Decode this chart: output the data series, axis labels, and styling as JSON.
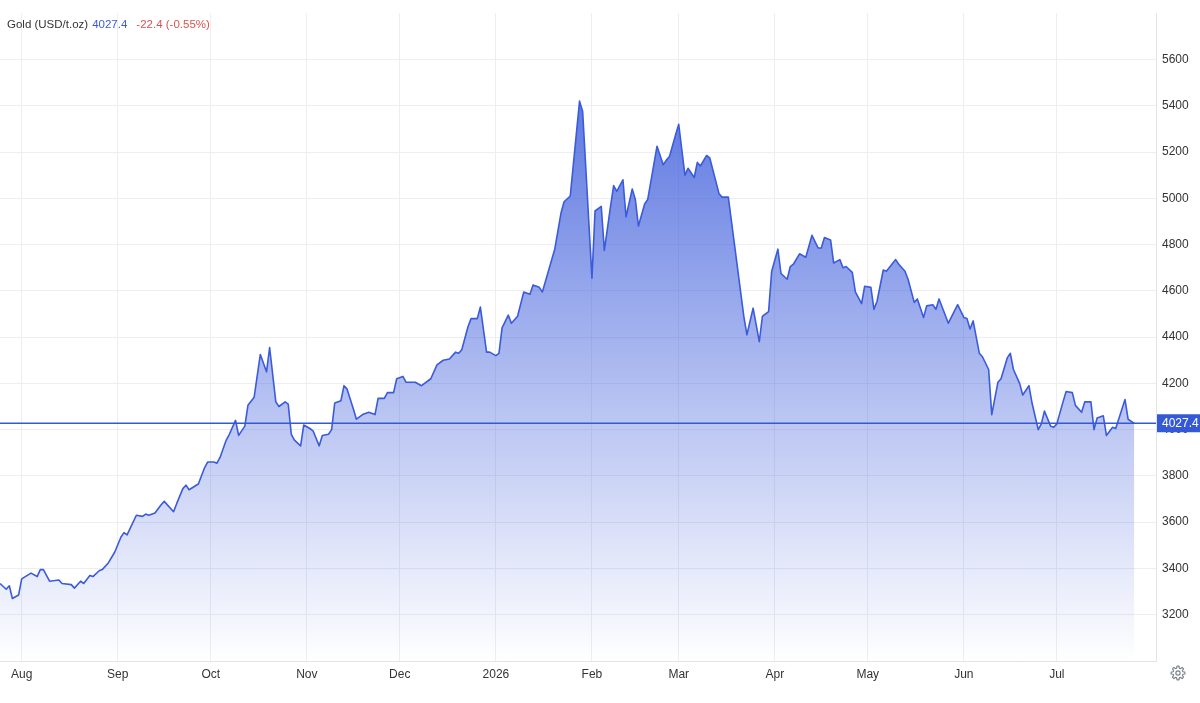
{
  "chart_data": {
    "type": "area",
    "title": "Gold (USD/t.oz)",
    "annotations": [
      "4027.4",
      "-22.4 (-0.55%)"
    ],
    "color": "#3b5bdb",
    "x": [
      "2025-07-25",
      "2025-07-27",
      "2025-07-28",
      "2025-07-29",
      "2025-07-31",
      "2025-08-01",
      "2025-08-04",
      "2025-08-06",
      "2025-08-07",
      "2025-08-08",
      "2025-08-10",
      "2025-08-13",
      "2025-08-14",
      "2025-08-17",
      "2025-08-18",
      "2025-08-20",
      "2025-08-21",
      "2025-08-23",
      "2025-08-24",
      "2025-08-26",
      "2025-08-27",
      "2025-08-29",
      "2025-08-31",
      "2025-09-02",
      "2025-09-03",
      "2025-09-04",
      "2025-09-07",
      "2025-09-09",
      "2025-09-10",
      "2025-09-11",
      "2025-09-13",
      "2025-09-15",
      "2025-09-16",
      "2025-09-19",
      "2025-09-20",
      "2025-09-22",
      "2025-09-23",
      "2025-09-24",
      "2025-09-27",
      "2025-09-29",
      "2025-09-30",
      "2025-10-02",
      "2025-10-03",
      "2025-10-04",
      "2025-10-06",
      "2025-10-07",
      "2025-10-09",
      "2025-10-10",
      "2025-10-12",
      "2025-10-13",
      "2025-10-15",
      "2025-10-17",
      "2025-10-19",
      "2025-10-20",
      "2025-10-22",
      "2025-10-23",
      "2025-10-25",
      "2025-10-26",
      "2025-10-27",
      "2025-10-28",
      "2025-10-30",
      "2025-10-31",
      "2025-11-02",
      "2025-11-03",
      "2025-11-05",
      "2025-11-06",
      "2025-11-08",
      "2025-11-09",
      "2025-11-10",
      "2025-11-12",
      "2025-11-13",
      "2025-11-14",
      "2025-11-16",
      "2025-11-17",
      "2025-11-19",
      "2025-11-21",
      "2025-11-23",
      "2025-11-24",
      "2025-11-26",
      "2025-11-27",
      "2025-11-29",
      "2025-11-30",
      "2025-12-02",
      "2025-12-03",
      "2025-12-06",
      "2025-12-08",
      "2025-12-11",
      "2025-12-13",
      "2025-12-15",
      "2025-12-17",
      "2025-12-19",
      "2025-12-20",
      "2025-12-21",
      "2025-12-23",
      "2025-12-24",
      "2025-12-26",
      "2025-12-27",
      "2025-12-29",
      "2025-12-30",
      "2026-01-01",
      "2026-01-02",
      "2026-01-03",
      "2026-01-05",
      "2026-01-06",
      "2026-01-08",
      "2026-01-10",
      "2026-01-12",
      "2026-01-13",
      "2026-01-15",
      "2026-01-16",
      "2026-01-20",
      "2026-01-22",
      "2026-01-23",
      "2026-01-25",
      "2026-01-28",
      "2026-01-29",
      "2026-02-01",
      "2026-02-02",
      "2026-02-04",
      "2026-02-05",
      "2026-02-07",
      "2026-02-08",
      "2026-02-09",
      "2026-02-11",
      "2026-02-12",
      "2026-02-14",
      "2026-02-15",
      "2026-02-16",
      "2026-02-18",
      "2026-02-19",
      "2026-02-22",
      "2026-02-24",
      "2026-02-25",
      "2026-02-26",
      "2026-02-28",
      "2026-03-01",
      "2026-03-03",
      "2026-03-04",
      "2026-03-06",
      "2026-03-07",
      "2026-03-08",
      "2026-03-10",
      "2026-03-11",
      "2026-03-14",
      "2026-03-15",
      "2026-03-17",
      "2026-03-22",
      "2026-03-23",
      "2026-03-25",
      "2026-03-27",
      "2026-03-28",
      "2026-03-30",
      "2026-03-31",
      "2026-04-02",
      "2026-04-03",
      "2026-04-05",
      "2026-04-06",
      "2026-04-07",
      "2026-04-09",
      "2026-04-11",
      "2026-04-13",
      "2026-04-15",
      "2026-04-16",
      "2026-04-17",
      "2026-04-19",
      "2026-04-20",
      "2026-04-22",
      "2026-04-23",
      "2026-04-24",
      "2026-04-26",
      "2026-04-27",
      "2026-04-29",
      "2026-04-30",
      "2026-05-02",
      "2026-05-03",
      "2026-05-04",
      "2026-05-06",
      "2026-05-07",
      "2026-05-10",
      "2026-05-11",
      "2026-05-13",
      "2026-05-14",
      "2026-05-16",
      "2026-05-17",
      "2026-05-19",
      "2026-05-20",
      "2026-05-22",
      "2026-05-23",
      "2026-05-24",
      "2026-05-27",
      "2026-05-30",
      "2026-06-01",
      "2026-06-02",
      "2026-06-03",
      "2026-06-04",
      "2026-06-06",
      "2026-06-07",
      "2026-06-09",
      "2026-06-10",
      "2026-06-12",
      "2026-06-13",
      "2026-06-15",
      "2026-06-16",
      "2026-06-17",
      "2026-06-19",
      "2026-06-20",
      "2026-06-22",
      "2026-06-23",
      "2026-06-25",
      "2026-06-26",
      "2026-06-27",
      "2026-06-29",
      "2026-06-30",
      "2026-07-01",
      "2026-07-03",
      "2026-07-04",
      "2026-07-06",
      "2026-07-07",
      "2026-07-09",
      "2026-07-10",
      "2026-07-12",
      "2026-07-13",
      "2026-07-14",
      "2026-07-16",
      "2026-07-17",
      "2026-07-19",
      "2026-07-20",
      "2026-07-23",
      "2026-07-24",
      "2026-07-26"
    ],
    "values": [
      3335,
      3310,
      3325,
      3270,
      3285,
      3355,
      3380,
      3365,
      3395,
      3395,
      3345,
      3350,
      3335,
      3330,
      3315,
      3345,
      3335,
      3370,
      3365,
      3390,
      3395,
      3425,
      3470,
      3535,
      3555,
      3545,
      3630,
      3625,
      3635,
      3630,
      3640,
      3675,
      3690,
      3645,
      3680,
      3745,
      3760,
      3740,
      3765,
      3835,
      3860,
      3860,
      3855,
      3880,
      3955,
      3980,
      4040,
      3975,
      4015,
      4105,
      4140,
      4325,
      4250,
      4355,
      4120,
      4100,
      4120,
      4110,
      3980,
      3955,
      3930,
      4020,
      4005,
      3995,
      3930,
      3975,
      3980,
      4000,
      4115,
      4125,
      4190,
      4175,
      4090,
      4045,
      4065,
      4075,
      4065,
      4135,
      4135,
      4160,
      4160,
      4220,
      4230,
      4205,
      4205,
      4190,
      4220,
      4280,
      4300,
      4305,
      4335,
      4330,
      4345,
      4445,
      4480,
      4480,
      4530,
      4335,
      4335,
      4320,
      4330,
      4440,
      4495,
      4460,
      4490,
      4595,
      4585,
      4625,
      4615,
      4595,
      4780,
      4935,
      4985,
      5010,
      5420,
      5375,
      4655,
      4945,
      4965,
      4775,
      4965,
      5055,
      5030,
      5080,
      4920,
      5040,
      4995,
      4880,
      4975,
      4995,
      5225,
      5145,
      5165,
      5180,
      5275,
      5320,
      5100,
      5130,
      5090,
      5155,
      5140,
      5185,
      5175,
      5020,
      5005,
      5005,
      4490,
      4410,
      4525,
      4380,
      4490,
      4510,
      4685,
      4780,
      4675,
      4650,
      4705,
      4715,
      4760,
      4745,
      4840,
      4785,
      4785,
      4830,
      4820,
      4720,
      4735,
      4700,
      4705,
      4680,
      4595,
      4545,
      4620,
      4615,
      4520,
      4555,
      4690,
      4685,
      4735,
      4715,
      4685,
      4650,
      4550,
      4565,
      4485,
      4535,
      4540,
      4520,
      4565,
      4460,
      4540,
      4485,
      4480,
      4435,
      4470,
      4330,
      4315,
      4260,
      4065,
      4205,
      4220,
      4310,
      4330,
      4260,
      4200,
      4150,
      4190,
      4115,
      4000,
      4025,
      4080,
      4015,
      4010,
      4025,
      4120,
      4165,
      4160,
      4105,
      4075,
      4120,
      4120,
      4000,
      4050,
      4060,
      3975,
      4010,
      4005,
      4130,
      4045,
      4027.4
    ],
    "xlim": [
      "2025-07-25",
      "2026-08-02"
    ],
    "xticks": [
      {
        "value": "2025-08-01",
        "label": "Aug"
      },
      {
        "value": "2025-09-01",
        "label": "Sep"
      },
      {
        "value": "2025-10-01",
        "label": "Oct"
      },
      {
        "value": "2025-11-01",
        "label": "Nov"
      },
      {
        "value": "2025-12-01",
        "label": "Dec"
      },
      {
        "value": "2026-01-01",
        "label": "2026"
      },
      {
        "value": "2026-02-01",
        "label": "Feb"
      },
      {
        "value": "2026-03-01",
        "label": "Mar"
      },
      {
        "value": "2026-04-01",
        "label": "Apr"
      },
      {
        "value": "2026-05-01",
        "label": "May"
      },
      {
        "value": "2026-06-01",
        "label": "Jun"
      },
      {
        "value": "2026-07-01",
        "label": "Jul"
      }
    ],
    "ylim": [
      3000,
      5800
    ],
    "yticks": [
      3200,
      3400,
      3600,
      3800,
      4000,
      4200,
      4400,
      4600,
      4800,
      5000,
      5200,
      5400,
      5600
    ],
    "grid": true,
    "ref_lines": [
      {
        "axis": "y",
        "value": 4027.4,
        "label": "4027.4",
        "color": "#3558d6"
      }
    ]
  }
}
